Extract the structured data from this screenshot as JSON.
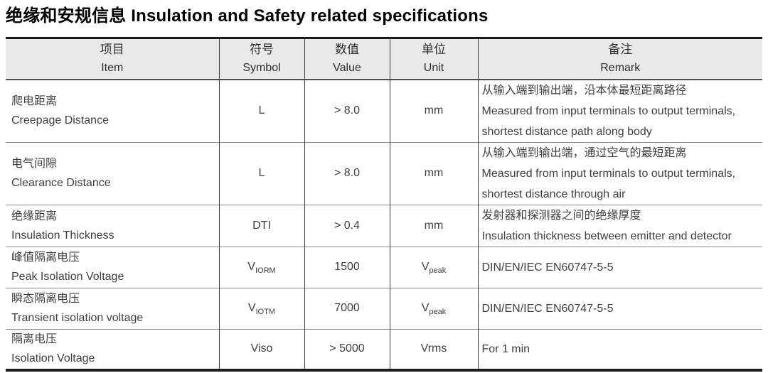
{
  "title": "绝缘和安规信息 Insulation and Safety related specifications",
  "table": {
    "headers": {
      "item": {
        "zh": "项目",
        "en": "Item"
      },
      "symbol": {
        "zh": "符号",
        "en": "Symbol"
      },
      "value": {
        "zh": "数值",
        "en": "Value"
      },
      "unit": {
        "zh": "单位",
        "en": "Unit"
      },
      "remark": {
        "zh": "备注",
        "en": "Remark"
      }
    },
    "rows": [
      {
        "item_zh": "爬电距离",
        "item_en": "Creepage Distance",
        "symbol_main": "L",
        "symbol_sub": "",
        "value": "> 8.0",
        "unit_main": "mm",
        "unit_sub": "",
        "remark": [
          "从输入端到输出端，沿本体最短距离路径",
          "Measured from input terminals to output terminals,",
          "shortest distance path along body"
        ]
      },
      {
        "item_zh": "电气间隙",
        "item_en": "Clearance Distance",
        "symbol_main": "L",
        "symbol_sub": "",
        "value": "> 8.0",
        "unit_main": "mm",
        "unit_sub": "",
        "remark": [
          "从输入端到输出端，通过空气的最短距离",
          "Measured from input terminals to output terminals,",
          "shortest distance through air"
        ]
      },
      {
        "item_zh": "绝缘距离",
        "item_en": "Insulation Thickness",
        "symbol_main": "DTI",
        "symbol_sub": "",
        "value": "> 0.4",
        "unit_main": "mm",
        "unit_sub": "",
        "remark": [
          "发射器和探测器之间的绝缘厚度",
          "Insulation thickness between emitter and detector"
        ]
      },
      {
        "item_zh": "峰值隔离电压",
        "item_en": "Peak Isolation Voltage",
        "symbol_main": "V",
        "symbol_sub": "IORM",
        "value": "1500",
        "unit_main": "V",
        "unit_sub": "peak",
        "remark": [
          "DIN/EN/IEC EN60747-5-5"
        ]
      },
      {
        "item_zh": "瞬态隔离电压",
        "item_en": "Transient isolation voltage",
        "symbol_main": "V",
        "symbol_sub": "IOTM",
        "value": "7000",
        "unit_main": "V",
        "unit_sub": "peak",
        "remark": [
          "DIN/EN/IEC EN60747-5-5"
        ]
      },
      {
        "item_zh": "隔离电压",
        "item_en": "Isolation Voltage",
        "symbol_main": "Viso",
        "symbol_sub": "",
        "value": "> 5000",
        "unit_main": "Vrms",
        "unit_sub": "",
        "remark": [
          "For 1 min"
        ]
      }
    ]
  }
}
